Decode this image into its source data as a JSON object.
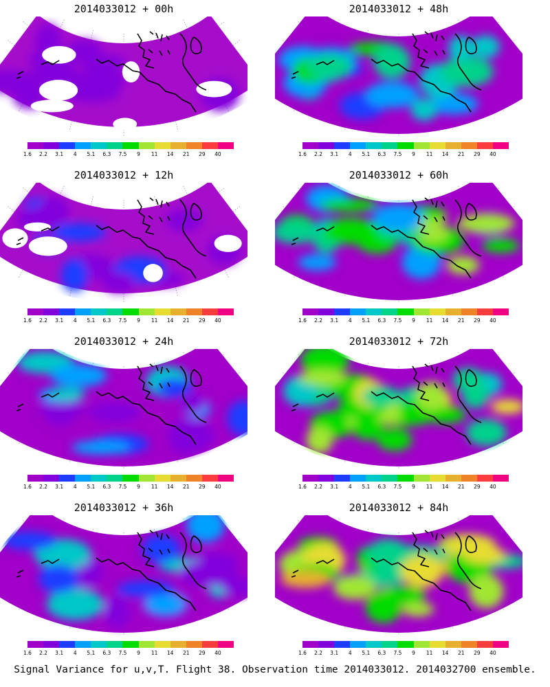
{
  "panels": [
    {
      "title": "2014033012 + 00h",
      "lead": "00h",
      "col": 0,
      "row": 0,
      "level": 0
    },
    {
      "title": "2014033012 + 48h",
      "lead": "48h",
      "col": 1,
      "row": 0,
      "level": 3
    },
    {
      "title": "2014033012 + 12h",
      "lead": "12h",
      "col": 0,
      "row": 1,
      "level": 1
    },
    {
      "title": "2014033012 + 60h",
      "lead": "60h",
      "col": 1,
      "row": 1,
      "level": 4
    },
    {
      "title": "2014033012 + 24h",
      "lead": "24h",
      "col": 0,
      "row": 2,
      "level": 2
    },
    {
      "title": "2014033012 + 72h",
      "lead": "72h",
      "col": 1,
      "row": 2,
      "level": 5
    },
    {
      "title": "2014033012 + 36h",
      "lead": "36h",
      "col": 0,
      "row": 3,
      "level": 2
    },
    {
      "title": "2014033012 + 84h",
      "lead": "84h",
      "col": 1,
      "row": 3,
      "level": 6
    }
  ],
  "colorbar": {
    "ticks": [
      "1.6",
      "2.2",
      "3.1",
      "4",
      "5.1",
      "6.3",
      "7.5",
      "9",
      "11",
      "14",
      "21",
      "29",
      "40"
    ],
    "colors": [
      "#a000c8",
      "#8200dc",
      "#1e3cff",
      "#00a0ff",
      "#00c8c8",
      "#00d28c",
      "#00dc00",
      "#a0e632",
      "#e6dc32",
      "#e6af2d",
      "#f08228",
      "#fa3c3c",
      "#f00082"
    ]
  },
  "footer": "Signal Variance for u,v,T. Flight 38. Observation time 2014033012. 2014032700 ensemble."
}
